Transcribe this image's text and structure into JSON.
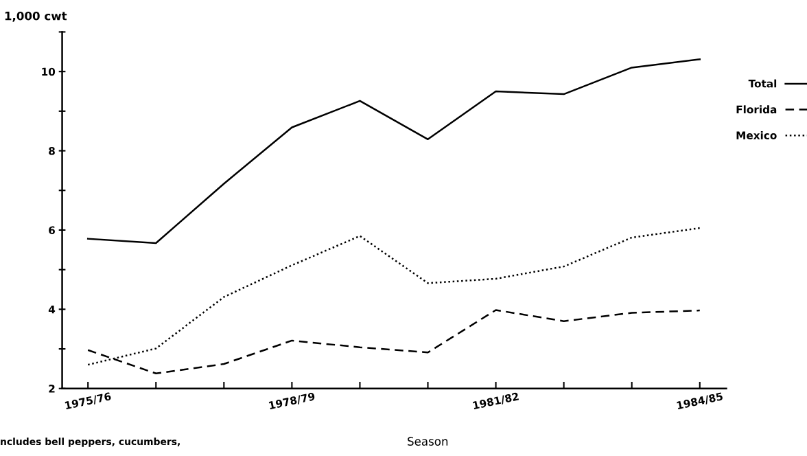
{
  "chart_data": {
    "type": "line",
    "ylabel": "1,000 cwt",
    "xlabel": "Season",
    "categories": [
      "1975/76",
      null,
      null,
      "1978/79",
      null,
      null,
      "1981/82",
      null,
      null,
      "1984/85"
    ],
    "series": [
      {
        "name": "Total",
        "color": "#000000",
        "line_style": "solid",
        "values": [
          5.78,
          5.67,
          7.17,
          8.59,
          9.26,
          8.29,
          9.5,
          9.43,
          10.1,
          10.31
        ]
      },
      {
        "name": "Florida",
        "color": "#000000",
        "line_style": "dashed",
        "values": [
          2.97,
          2.38,
          2.62,
          3.21,
          3.04,
          2.91,
          3.98,
          3.7,
          3.91,
          3.97
        ]
      },
      {
        "name": "Mexico",
        "color": "#000000",
        "line_style": "dotted",
        "values": [
          2.6,
          3.01,
          4.31,
          5.11,
          5.85,
          4.66,
          4.77,
          5.08,
          5.81,
          6.05
        ]
      }
    ],
    "ylim": [
      2,
      11
    ],
    "yticks": [
      2,
      {
        "value": 3,
        "label": null
      },
      4,
      {
        "value": 5,
        "label": null
      },
      6,
      {
        "value": 7,
        "label": null
      },
      8,
      {
        "value": 9,
        "label": null
      },
      10,
      {
        "value": 11,
        "label": null
      }
    ],
    "grid": false,
    "legend": "right",
    "marker": "none",
    "annotations": [
      "ncludes bell peppers, cucumbers,"
    ]
  }
}
